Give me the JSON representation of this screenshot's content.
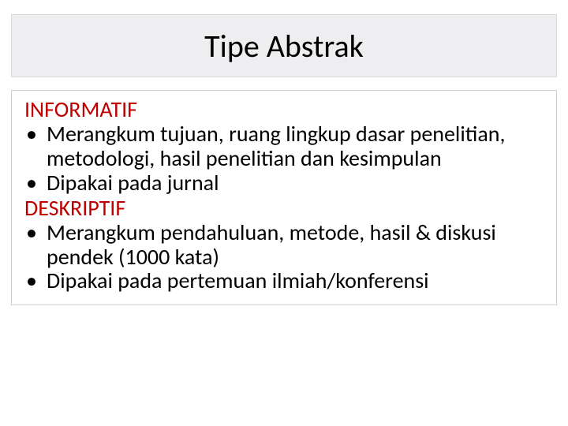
{
  "slide": {
    "title": "Tipe Abstrak",
    "title_fontsize": 40,
    "title_bg": "#eeeef0",
    "title_border": "#d9d9dc",
    "body_border": "#cfcfd2",
    "body_fontsize": 28,
    "heading_color": "#c00000",
    "text_color": "#000000",
    "background_color": "#ffffff",
    "sections": [
      {
        "heading": "INFORMATIF",
        "bullets": [
          "Merangkum tujuan, ruang lingkup dasar penelitian, metodologi, hasil penelitian dan kesimpulan",
          "Dipakai pada jurnal"
        ]
      },
      {
        "heading": "DESKRIPTIF",
        "bullets": [
          "Merangkum pendahuluan, metode, hasil & diskusi pendek (1000 kata)",
          "Dipakai pada pertemuan ilmiah/konferensi"
        ]
      }
    ]
  }
}
